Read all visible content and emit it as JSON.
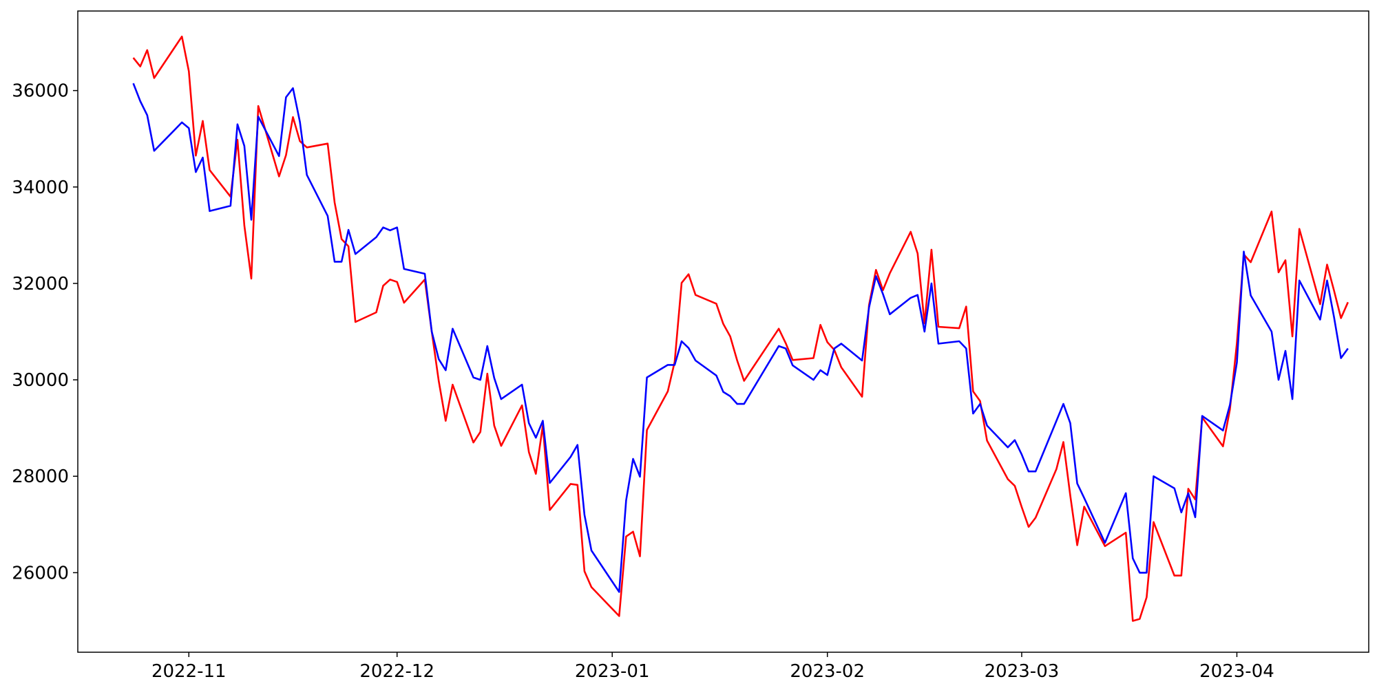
{
  "chart_data": {
    "type": "line",
    "title": "",
    "xlabel": "",
    "ylabel": "",
    "x_start": "2022-10-24",
    "x_range": [
      "2022-10-16",
      "2023-04-20"
    ],
    "ylim": [
      24350,
      37650
    ],
    "grid": false,
    "legend": "none",
    "x_ticks": [
      "2022-11",
      "2022-12",
      "2023-01",
      "2023-02",
      "2023-03",
      "2023-04"
    ],
    "x_tick_dates": [
      "2022-11-01",
      "2022-12-01",
      "2023-01-01",
      "2023-02-01",
      "2023-03-01",
      "2023-04-01"
    ],
    "y_ticks": [
      26000,
      28000,
      30000,
      32000,
      34000,
      36000
    ],
    "series": [
      {
        "color": "#ff0000",
        "points": [
          [
            "2022-10-24",
            36680
          ],
          [
            "2022-10-25",
            36500
          ],
          [
            "2022-10-26",
            36840
          ],
          [
            "2022-10-27",
            36260
          ],
          [
            "2022-10-31",
            37120
          ],
          [
            "2022-11-01",
            36400
          ],
          [
            "2022-11-02",
            34650
          ],
          [
            "2022-11-03",
            35370
          ],
          [
            "2022-11-04",
            34350
          ],
          [
            "2022-11-07",
            33800
          ],
          [
            "2022-11-08",
            34980
          ],
          [
            "2022-11-09",
            33200
          ],
          [
            "2022-11-10",
            32100
          ],
          [
            "2022-11-11",
            35680
          ],
          [
            "2022-11-14",
            34220
          ],
          [
            "2022-11-15",
            34660
          ],
          [
            "2022-11-16",
            35450
          ],
          [
            "2022-11-17",
            34950
          ],
          [
            "2022-11-18",
            34820
          ],
          [
            "2022-11-21",
            34900
          ],
          [
            "2022-11-22",
            33680
          ],
          [
            "2022-11-23",
            32920
          ],
          [
            "2022-11-24",
            32770
          ],
          [
            "2022-11-25",
            31200
          ],
          [
            "2022-11-28",
            31400
          ],
          [
            "2022-11-29",
            31950
          ],
          [
            "2022-11-30",
            32080
          ],
          [
            "2022-12-01",
            32030
          ],
          [
            "2022-12-02",
            31600
          ],
          [
            "2022-12-05",
            32080
          ],
          [
            "2022-12-06",
            31000
          ],
          [
            "2022-12-07",
            29980
          ],
          [
            "2022-12-08",
            29150
          ],
          [
            "2022-12-09",
            29900
          ],
          [
            "2022-12-12",
            28700
          ],
          [
            "2022-12-13",
            28920
          ],
          [
            "2022-12-14",
            30130
          ],
          [
            "2022-12-15",
            29050
          ],
          [
            "2022-12-16",
            28630
          ],
          [
            "2022-12-19",
            29470
          ],
          [
            "2022-12-20",
            28500
          ],
          [
            "2022-12-21",
            28050
          ],
          [
            "2022-12-22",
            29050
          ],
          [
            "2022-12-23",
            27300
          ],
          [
            "2022-12-26",
            27840
          ],
          [
            "2022-12-27",
            27820
          ],
          [
            "2022-12-28",
            26030
          ],
          [
            "2022-12-29",
            25700
          ],
          [
            "2023-01-02",
            25100
          ],
          [
            "2023-01-03",
            26750
          ],
          [
            "2023-01-04",
            26850
          ],
          [
            "2023-01-05",
            26340
          ],
          [
            "2023-01-06",
            28960
          ],
          [
            "2023-01-09",
            29760
          ],
          [
            "2023-01-10",
            30370
          ],
          [
            "2023-01-11",
            32010
          ],
          [
            "2023-01-12",
            32190
          ],
          [
            "2023-01-13",
            31760
          ],
          [
            "2023-01-16",
            31580
          ],
          [
            "2023-01-17",
            31160
          ],
          [
            "2023-01-18",
            30900
          ],
          [
            "2023-01-19",
            30400
          ],
          [
            "2023-01-20",
            29980
          ],
          [
            "2023-01-25",
            31060
          ],
          [
            "2023-01-26",
            30760
          ],
          [
            "2023-01-27",
            30410
          ],
          [
            "2023-01-30",
            30450
          ],
          [
            "2023-01-31",
            31140
          ],
          [
            "2023-02-01",
            30780
          ],
          [
            "2023-02-02",
            30620
          ],
          [
            "2023-02-03",
            30260
          ],
          [
            "2023-02-06",
            29650
          ],
          [
            "2023-02-07",
            31550
          ],
          [
            "2023-02-08",
            32280
          ],
          [
            "2023-02-09",
            31860
          ],
          [
            "2023-02-10",
            32210
          ],
          [
            "2023-02-13",
            33070
          ],
          [
            "2023-02-14",
            32620
          ],
          [
            "2023-02-15",
            31170
          ],
          [
            "2023-02-16",
            32700
          ],
          [
            "2023-02-17",
            31100
          ],
          [
            "2023-02-20",
            31070
          ],
          [
            "2023-02-21",
            31520
          ],
          [
            "2023-02-22",
            29760
          ],
          [
            "2023-02-23",
            29560
          ],
          [
            "2023-02-24",
            28740
          ],
          [
            "2023-02-27",
            27940
          ],
          [
            "2023-02-28",
            27800
          ],
          [
            "2023-03-01",
            27360
          ],
          [
            "2023-03-02",
            26950
          ],
          [
            "2023-03-03",
            27140
          ],
          [
            "2023-03-06",
            28150
          ],
          [
            "2023-03-07",
            28710
          ],
          [
            "2023-03-08",
            27600
          ],
          [
            "2023-03-09",
            26570
          ],
          [
            "2023-03-10",
            27370
          ],
          [
            "2023-03-13",
            26550
          ],
          [
            "2023-03-16",
            26830
          ],
          [
            "2023-03-17",
            25000
          ],
          [
            "2023-03-18",
            25040
          ],
          [
            "2023-03-19",
            25490
          ],
          [
            "2023-03-20",
            27050
          ],
          [
            "2023-03-23",
            25940
          ],
          [
            "2023-03-24",
            25940
          ],
          [
            "2023-03-25",
            27740
          ],
          [
            "2023-03-26",
            27520
          ],
          [
            "2023-03-27",
            29220
          ],
          [
            "2023-03-30",
            28620
          ],
          [
            "2023-03-31",
            29390
          ],
          [
            "2023-04-01",
            30760
          ],
          [
            "2023-04-02",
            32600
          ],
          [
            "2023-04-03",
            32440
          ],
          [
            "2023-04-06",
            33490
          ],
          [
            "2023-04-07",
            32230
          ],
          [
            "2023-04-08",
            32480
          ],
          [
            "2023-04-09",
            30900
          ],
          [
            "2023-04-10",
            33130
          ],
          [
            "2023-04-13",
            31570
          ],
          [
            "2023-04-14",
            32390
          ],
          [
            "2023-04-15",
            31850
          ],
          [
            "2023-04-16",
            31280
          ],
          [
            "2023-04-17",
            31610
          ]
        ]
      },
      {
        "color": "#0000ff",
        "points": [
          [
            "2022-10-24",
            36150
          ],
          [
            "2022-10-25",
            35780
          ],
          [
            "2022-10-26",
            35490
          ],
          [
            "2022-10-27",
            34750
          ],
          [
            "2022-10-31",
            35340
          ],
          [
            "2022-11-01",
            35220
          ],
          [
            "2022-11-02",
            34310
          ],
          [
            "2022-11-03",
            34610
          ],
          [
            "2022-11-04",
            33500
          ],
          [
            "2022-11-07",
            33610
          ],
          [
            "2022-11-08",
            35300
          ],
          [
            "2022-11-09",
            34850
          ],
          [
            "2022-11-10",
            33320
          ],
          [
            "2022-11-11",
            35460
          ],
          [
            "2022-11-14",
            34640
          ],
          [
            "2022-11-15",
            35860
          ],
          [
            "2022-11-16",
            36050
          ],
          [
            "2022-11-17",
            35350
          ],
          [
            "2022-11-18",
            34250
          ],
          [
            "2022-11-21",
            33400
          ],
          [
            "2022-11-22",
            32450
          ],
          [
            "2022-11-23",
            32450
          ],
          [
            "2022-11-24",
            33110
          ],
          [
            "2022-11-25",
            32610
          ],
          [
            "2022-11-28",
            32960
          ],
          [
            "2022-11-29",
            33160
          ],
          [
            "2022-11-30",
            33100
          ],
          [
            "2022-12-01",
            33160
          ],
          [
            "2022-12-02",
            32300
          ],
          [
            "2022-12-05",
            32200
          ],
          [
            "2022-12-06",
            31000
          ],
          [
            "2022-12-07",
            30430
          ],
          [
            "2022-12-08",
            30200
          ],
          [
            "2022-12-09",
            31060
          ],
          [
            "2022-12-12",
            30050
          ],
          [
            "2022-12-13",
            30000
          ],
          [
            "2022-12-14",
            30700
          ],
          [
            "2022-12-15",
            30040
          ],
          [
            "2022-12-16",
            29600
          ],
          [
            "2022-12-19",
            29900
          ],
          [
            "2022-12-20",
            29100
          ],
          [
            "2022-12-21",
            28800
          ],
          [
            "2022-12-22",
            29150
          ],
          [
            "2022-12-23",
            27860
          ],
          [
            "2022-12-26",
            28400
          ],
          [
            "2022-12-27",
            28650
          ],
          [
            "2022-12-28",
            27200
          ],
          [
            "2022-12-29",
            26460
          ],
          [
            "2023-01-02",
            25600
          ],
          [
            "2023-01-03",
            27500
          ],
          [
            "2023-01-04",
            28360
          ],
          [
            "2023-01-05",
            27990
          ],
          [
            "2023-01-06",
            30050
          ],
          [
            "2023-01-09",
            30310
          ],
          [
            "2023-01-10",
            30310
          ],
          [
            "2023-01-11",
            30800
          ],
          [
            "2023-01-12",
            30660
          ],
          [
            "2023-01-13",
            30400
          ],
          [
            "2023-01-16",
            30090
          ],
          [
            "2023-01-17",
            29750
          ],
          [
            "2023-01-18",
            29660
          ],
          [
            "2023-01-19",
            29500
          ],
          [
            "2023-01-20",
            29500
          ],
          [
            "2023-01-25",
            30700
          ],
          [
            "2023-01-26",
            30650
          ],
          [
            "2023-01-27",
            30300
          ],
          [
            "2023-01-30",
            30000
          ],
          [
            "2023-01-31",
            30200
          ],
          [
            "2023-02-01",
            30100
          ],
          [
            "2023-02-02",
            30650
          ],
          [
            "2023-02-03",
            30750
          ],
          [
            "2023-02-06",
            30400
          ],
          [
            "2023-02-07",
            31500
          ],
          [
            "2023-02-08",
            32150
          ],
          [
            "2023-02-09",
            31780
          ],
          [
            "2023-02-10",
            31360
          ],
          [
            "2023-02-13",
            31700
          ],
          [
            "2023-02-14",
            31760
          ],
          [
            "2023-02-15",
            31000
          ],
          [
            "2023-02-16",
            32000
          ],
          [
            "2023-02-17",
            30750
          ],
          [
            "2023-02-20",
            30800
          ],
          [
            "2023-02-21",
            30650
          ],
          [
            "2023-02-22",
            29300
          ],
          [
            "2023-02-23",
            29500
          ],
          [
            "2023-02-24",
            29050
          ],
          [
            "2023-02-27",
            28600
          ],
          [
            "2023-02-28",
            28750
          ],
          [
            "2023-03-01",
            28450
          ],
          [
            "2023-03-02",
            28100
          ],
          [
            "2023-03-03",
            28100
          ],
          [
            "2023-03-06",
            29150
          ],
          [
            "2023-03-07",
            29500
          ],
          [
            "2023-03-08",
            29100
          ],
          [
            "2023-03-09",
            27850
          ],
          [
            "2023-03-10",
            27550
          ],
          [
            "2023-03-13",
            26620
          ],
          [
            "2023-03-16",
            27650
          ],
          [
            "2023-03-17",
            26300
          ],
          [
            "2023-03-18",
            26000
          ],
          [
            "2023-03-19",
            26000
          ],
          [
            "2023-03-20",
            28000
          ],
          [
            "2023-03-23",
            27750
          ],
          [
            "2023-03-24",
            27250
          ],
          [
            "2023-03-25",
            27650
          ],
          [
            "2023-03-26",
            27150
          ],
          [
            "2023-03-27",
            29250
          ],
          [
            "2023-03-30",
            28950
          ],
          [
            "2023-03-31",
            29480
          ],
          [
            "2023-04-01",
            30360
          ],
          [
            "2023-04-02",
            32660
          ],
          [
            "2023-04-03",
            31750
          ],
          [
            "2023-04-06",
            31000
          ],
          [
            "2023-04-07",
            30000
          ],
          [
            "2023-04-08",
            30600
          ],
          [
            "2023-04-09",
            29600
          ],
          [
            "2023-04-10",
            32060
          ],
          [
            "2023-04-13",
            31250
          ],
          [
            "2023-04-14",
            32060
          ],
          [
            "2023-04-15",
            31300
          ],
          [
            "2023-04-16",
            30450
          ],
          [
            "2023-04-17",
            30650
          ]
        ]
      }
    ]
  }
}
